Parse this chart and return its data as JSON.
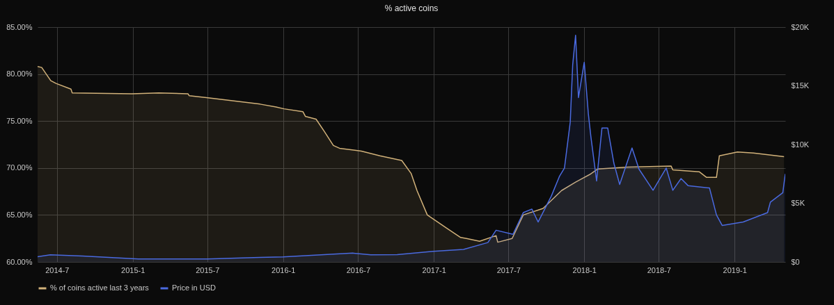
{
  "chart_data": {
    "type": "area",
    "title": "% active coins",
    "xlim": [
      "2014-05-15",
      "2019-05-04"
    ],
    "xticks": [
      {
        "value": "2014-07",
        "label": "2014-7"
      },
      {
        "value": "2015-01",
        "label": "2015-1"
      },
      {
        "value": "2015-07",
        "label": "2015-7"
      },
      {
        "value": "2016-01",
        "label": "2016-1"
      },
      {
        "value": "2016-07",
        "label": "2016-7"
      },
      {
        "value": "2017-01",
        "label": "2017-1"
      },
      {
        "value": "2017-07",
        "label": "2017-7"
      },
      {
        "value": "2018-01",
        "label": "2018-1"
      },
      {
        "value": "2018-07",
        "label": "2018-7"
      },
      {
        "value": "2019-01",
        "label": "2019-1"
      }
    ],
    "ylim": [
      60,
      85
    ],
    "yticks": [
      {
        "value": 60,
        "label": "60.00%"
      },
      {
        "value": 65,
        "label": "65.00%"
      },
      {
        "value": 70,
        "label": "70.00%"
      },
      {
        "value": 75,
        "label": "75.00%"
      },
      {
        "value": 80,
        "label": "80.00%"
      },
      {
        "value": 85,
        "label": "85.00%"
      }
    ],
    "y2lim": [
      0,
      20000
    ],
    "y2ticks": [
      {
        "value": 0,
        "label": "$0"
      },
      {
        "value": 5000,
        "label": "$5K"
      },
      {
        "value": 10000,
        "label": "$10K"
      },
      {
        "value": 15000,
        "label": "$15K"
      },
      {
        "value": 20000,
        "label": "$20K"
      }
    ],
    "grid": true,
    "legend": "bottom",
    "series": [
      {
        "name": "% of coins active last 3 years",
        "color": "#d2b27a",
        "x": [
          "2014-05-15",
          "2014-05-25",
          "2014-06-16",
          "2014-06-29",
          "2014-08-04",
          "2014-08-07",
          "2014-12-30",
          "2015-03-05",
          "2015-05-15",
          "2015-05-18",
          "2015-06-29",
          "2015-11-06",
          "2015-12-15",
          "2016-01-03",
          "2016-02-18",
          "2016-02-24",
          "2016-03-21",
          "2016-04-10",
          "2016-05-02",
          "2016-05-17",
          "2016-07-09",
          "2016-08-23",
          "2016-10-15",
          "2016-11-07",
          "2016-11-21",
          "2016-12-16",
          "2017-02-01",
          "2017-03-07",
          "2017-03-21",
          "2017-04-22",
          "2017-06-01",
          "2017-06-05",
          "2017-07-10",
          "2017-08-06",
          "2017-09-23",
          "2017-11-07",
          "2017-12-11",
          "2018-01-14",
          "2018-02-03",
          "2018-04-17",
          "2018-07-31",
          "2018-08-04",
          "2018-10-07",
          "2018-10-25",
          "2018-11-18",
          "2018-11-25",
          "2019-01-08",
          "2019-02-16",
          "2019-05-01"
        ],
        "values": [
          80.8,
          80.7,
          79.3,
          79.0,
          78.4,
          78.0,
          77.9,
          78.0,
          77.9,
          77.7,
          77.5,
          76.8,
          76.5,
          76.3,
          76.0,
          75.5,
          75.2,
          73.9,
          72.4,
          72.1,
          71.8,
          71.3,
          70.8,
          69.4,
          67.6,
          65.0,
          63.6,
          62.6,
          62.5,
          62.2,
          62.8,
          62.1,
          62.5,
          65.0,
          65.7,
          67.6,
          68.5,
          69.3,
          69.9,
          70.1,
          70.2,
          69.8,
          69.6,
          69.0,
          69.0,
          71.3,
          71.7,
          71.6,
          71.2
        ]
      },
      {
        "name": "Price in USD",
        "color": "#4a6ae0",
        "axis": "y2",
        "x": [
          "2014-05-15",
          "2014-06-15",
          "2014-09-01",
          "2015-01-15",
          "2015-07-01",
          "2015-11-05",
          "2016-01-01",
          "2016-06-18",
          "2016-08-01",
          "2016-10-04",
          "2016-12-30",
          "2017-03-14",
          "2017-05-12",
          "2017-06-01",
          "2017-07-12",
          "2017-08-06",
          "2017-08-27",
          "2017-09-11",
          "2017-10-13",
          "2017-11-02",
          "2017-11-14",
          "2017-11-28",
          "2017-12-04",
          "2017-12-11",
          "2017-12-18",
          "2018-01-01",
          "2018-01-11",
          "2018-01-17",
          "2018-01-31",
          "2018-02-13",
          "2018-02-27",
          "2018-03-14",
          "2018-03-28",
          "2018-04-27",
          "2018-05-14",
          "2018-06-17",
          "2018-07-19",
          "2018-08-04",
          "2018-08-24",
          "2018-09-10",
          "2018-11-01",
          "2018-11-18",
          "2018-12-02",
          "2019-01-22",
          "2019-03-22",
          "2019-03-29",
          "2019-04-28",
          "2019-05-04"
        ],
        "values": [
          450,
          600,
          500,
          250,
          250,
          380,
          430,
          750,
          600,
          620,
          900,
          1070,
          1650,
          2700,
          2350,
          4200,
          4500,
          3400,
          5600,
          7300,
          8000,
          11900,
          16800,
          19300,
          14000,
          17000,
          12600,
          10700,
          6900,
          11400,
          11400,
          8400,
          6600,
          9700,
          7900,
          6100,
          8000,
          6100,
          7100,
          6500,
          6300,
          4000,
          3100,
          3400,
          4200,
          5100,
          5900,
          7500
        ]
      }
    ]
  }
}
